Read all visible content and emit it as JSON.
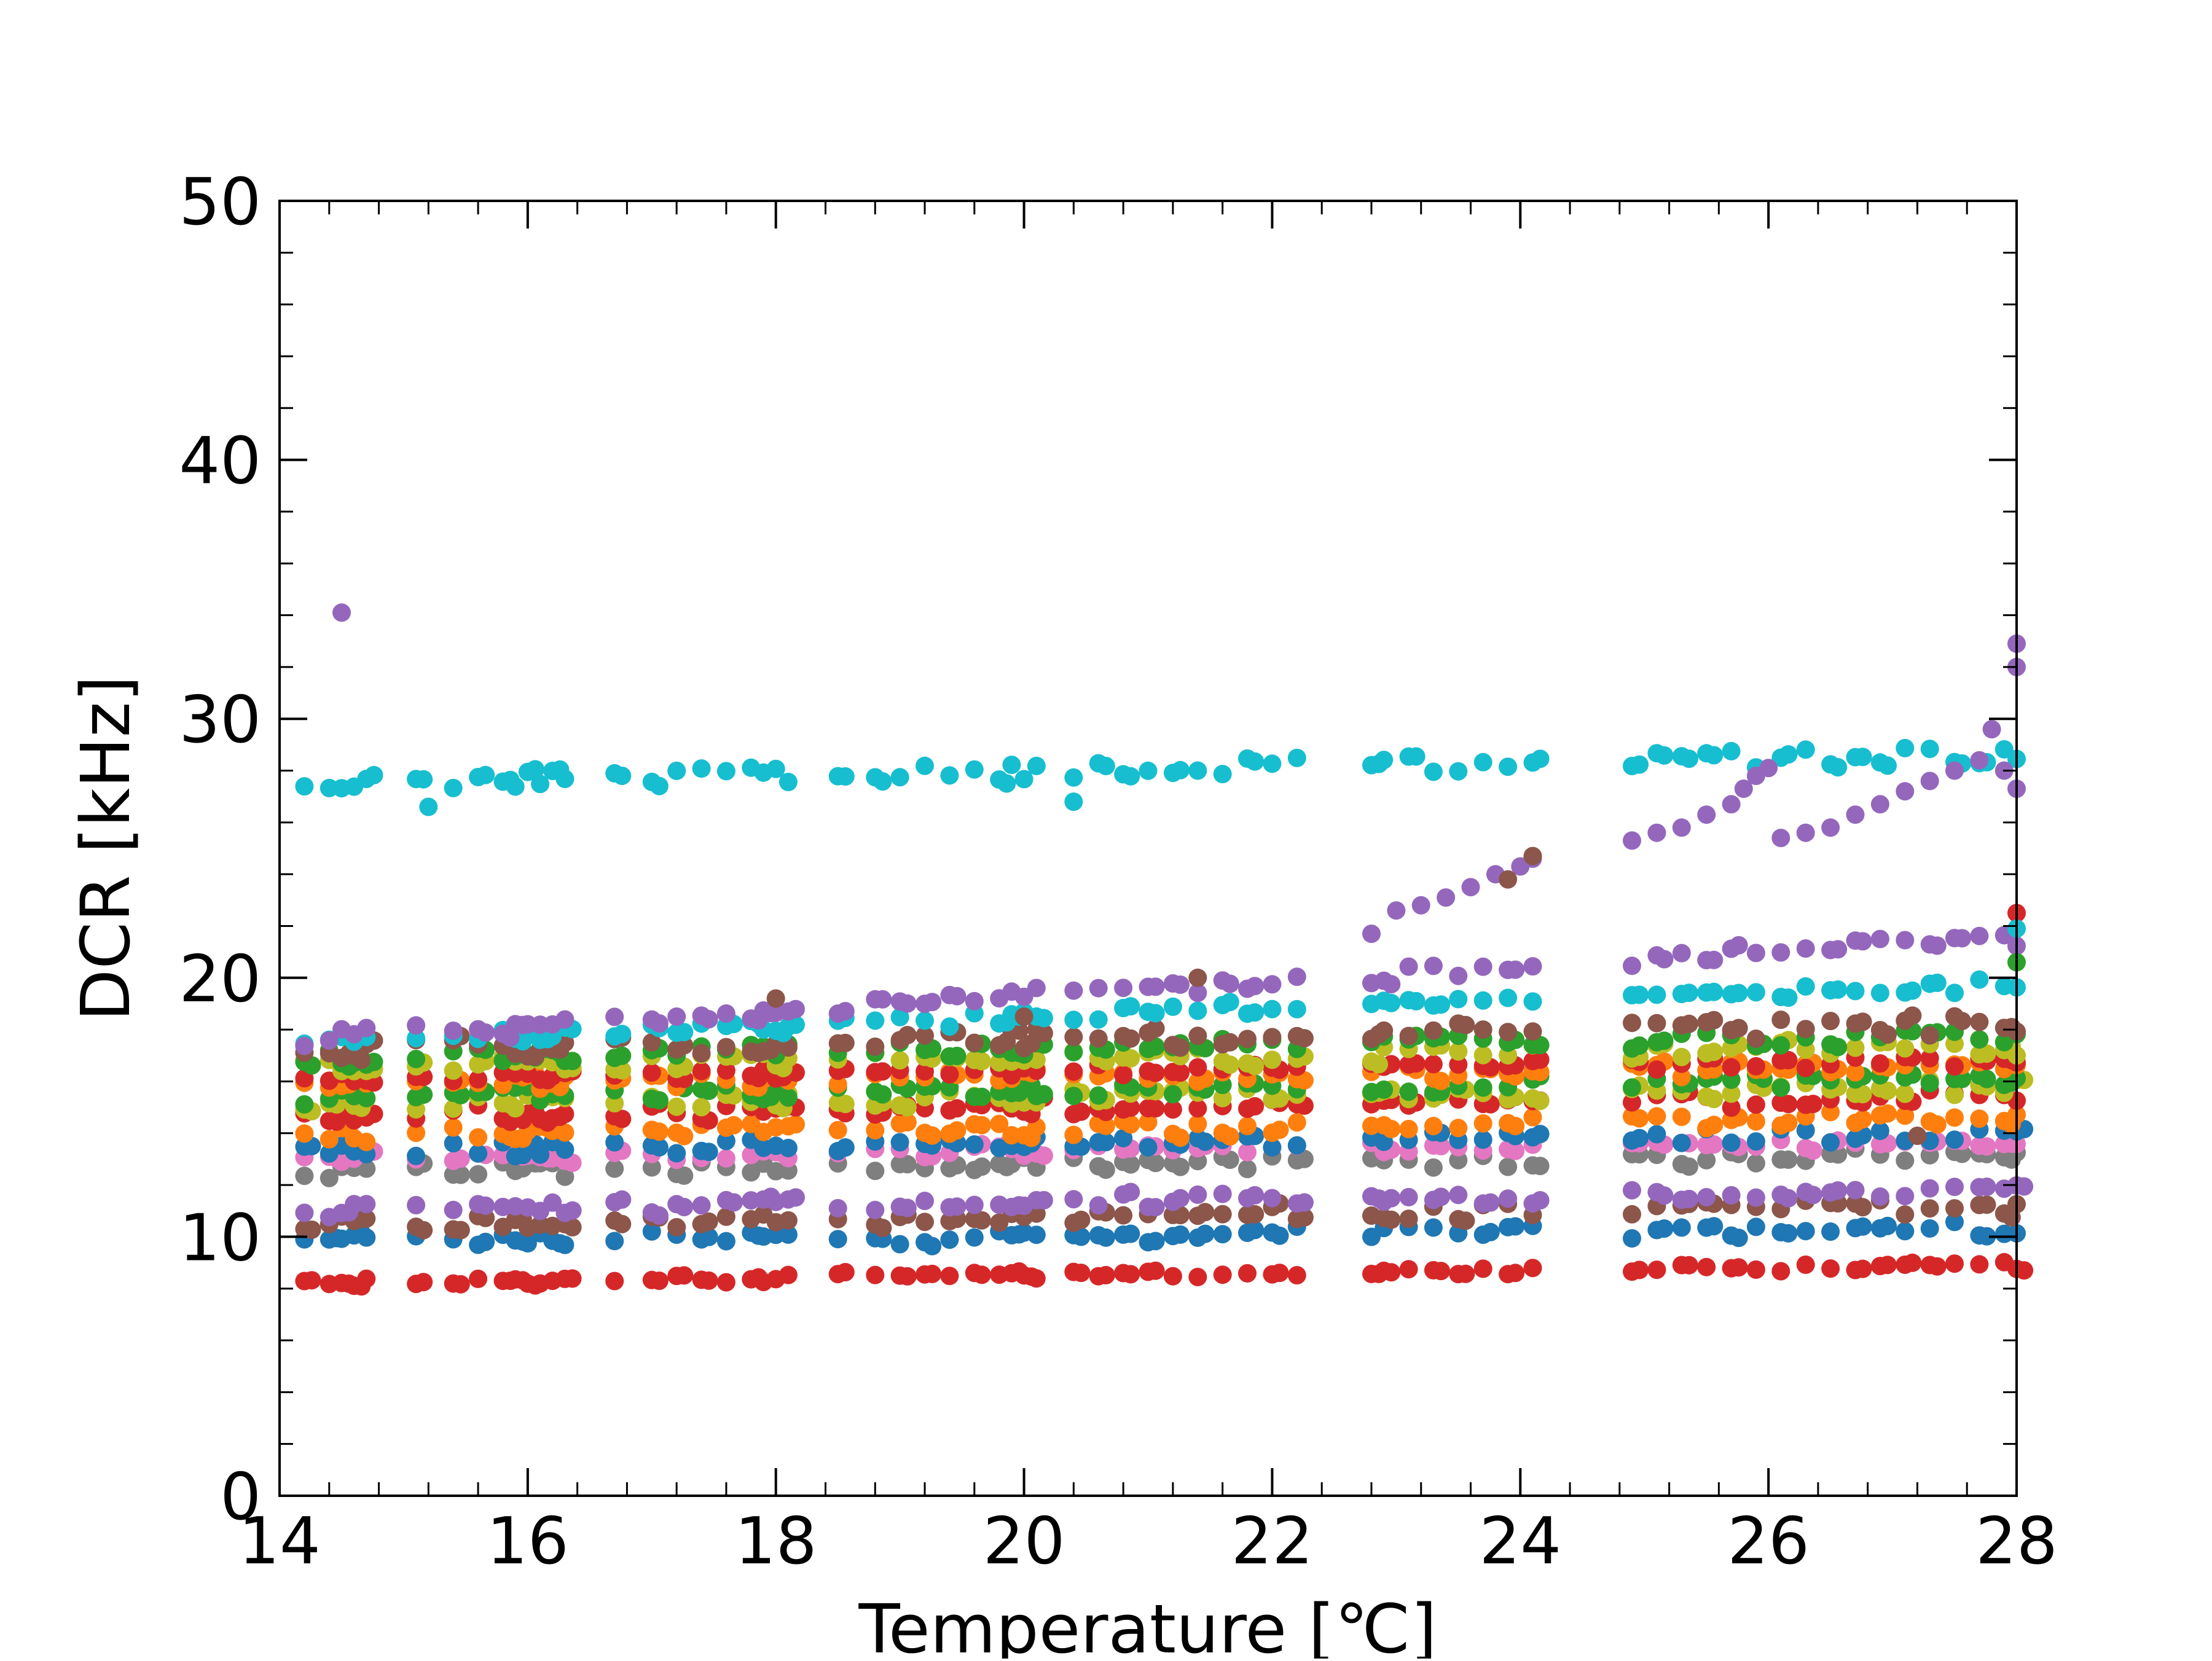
{
  "chart_data": {
    "type": "scatter",
    "title": "",
    "xlabel": "Temperature [℃]",
    "ylabel": "DCR [kHz]",
    "xlim": [
      14,
      28
    ],
    "ylim": [
      0,
      50
    ],
    "xticks": [
      14,
      16,
      18,
      20,
      22,
      24,
      26,
      28
    ],
    "yticks": [
      0,
      10,
      20,
      30,
      40,
      50
    ],
    "xtick_labels": [
      "14",
      "16",
      "18",
      "20",
      "22",
      "24",
      "26",
      "28"
    ],
    "ytick_labels": [
      "0",
      "10",
      "20",
      "30",
      "40",
      "50"
    ],
    "x_minor_step": 0.4,
    "y_minor_step": 2,
    "grid": false,
    "legend": "none",
    "colors": {
      "blue": "#1f77b4",
      "orange": "#ff7f0e",
      "green": "#2ca02c",
      "red": "#d62728",
      "purple": "#9467bd",
      "brown": "#8c564b",
      "pink": "#e377c2",
      "gray": "#7f7f7f",
      "olive": "#bcbd22",
      "cyan": "#17becf"
    },
    "x_temperatures": [
      14.2,
      14.4,
      14.5,
      14.6,
      14.7,
      15.1,
      15.4,
      15.6,
      15.8,
      15.9,
      16.0,
      16.1,
      16.2,
      16.3,
      16.7,
      17.0,
      17.2,
      17.4,
      17.6,
      17.8,
      17.9,
      18.0,
      18.1,
      18.5,
      18.8,
      19.0,
      19.2,
      19.4,
      19.6,
      19.8,
      19.9,
      20.0,
      20.1,
      20.4,
      20.6,
      20.8,
      21.0,
      21.2,
      21.4,
      21.6,
      21.8,
      22.0,
      22.2,
      22.8,
      22.9,
      23.1,
      23.3,
      23.5,
      23.7,
      23.9,
      24.1,
      24.9,
      25.1,
      25.3,
      25.5,
      25.7,
      25.9,
      26.1,
      26.3,
      26.5,
      26.7,
      26.9,
      27.1,
      27.3,
      27.5,
      27.7,
      27.9,
      28.0
    ],
    "series": [
      {
        "color": "blue",
        "level": 9.8,
        "slope": 0.04,
        "jitter": 0.3
      },
      {
        "color": "red",
        "level": 8.2,
        "slope": 0.05,
        "jitter": 0.15
      },
      {
        "color": "brown",
        "level": 10.5,
        "slope": 0.05,
        "jitter": 0.3
      },
      {
        "color": "purple",
        "level": 11.0,
        "slope": 0.05,
        "jitter": 0.3
      },
      {
        "color": "gray",
        "level": 12.5,
        "slope": 0.05,
        "jitter": 0.3
      },
      {
        "color": "pink",
        "level": 13.0,
        "slope": 0.05,
        "jitter": 0.2
      },
      {
        "color": "blue",
        "level": 13.3,
        "slope": 0.05,
        "jitter": 0.3
      },
      {
        "color": "orange",
        "level": 13.9,
        "slope": 0.05,
        "jitter": 0.3
      },
      {
        "color": "red",
        "level": 14.7,
        "slope": 0.05,
        "jitter": 0.3
      },
      {
        "color": "olive",
        "level": 15.1,
        "slope": 0.05,
        "jitter": 0.3
      },
      {
        "color": "green",
        "level": 15.4,
        "slope": 0.05,
        "jitter": 0.3
      },
      {
        "color": "orange",
        "level": 15.9,
        "slope": 0.05,
        "jitter": 0.3
      },
      {
        "color": "red",
        "level": 16.1,
        "slope": 0.05,
        "jitter": 0.2
      },
      {
        "color": "olive",
        "level": 16.6,
        "slope": 0.05,
        "jitter": 0.3
      },
      {
        "color": "green",
        "level": 16.9,
        "slope": 0.06,
        "jitter": 0.3
      },
      {
        "color": "brown",
        "level": 17.2,
        "slope": 0.07,
        "jitter": 0.4
      },
      {
        "color": "cyan",
        "level": 17.5,
        "slope": 0.16,
        "jitter": 0.25
      },
      {
        "color": "purple",
        "level": 17.6,
        "slope": 0.28,
        "jitter": 0.3
      },
      {
        "color": "cyan",
        "level": 27.5,
        "slope": 0.08,
        "jitter": 0.35
      }
    ],
    "purple_band": [
      {
        "x": 22.8,
        "y": 21.7
      },
      {
        "x": 23.0,
        "y": 22.6
      },
      {
        "x": 23.2,
        "y": 22.8
      },
      {
        "x": 23.4,
        "y": 23.1
      },
      {
        "x": 23.6,
        "y": 23.5
      },
      {
        "x": 23.8,
        "y": 24.0
      },
      {
        "x": 24.0,
        "y": 24.3
      },
      {
        "x": 24.1,
        "y": 24.6
      },
      {
        "x": 24.9,
        "y": 25.3
      },
      {
        "x": 25.1,
        "y": 25.6
      },
      {
        "x": 25.3,
        "y": 25.8
      },
      {
        "x": 25.5,
        "y": 26.3
      },
      {
        "x": 25.7,
        "y": 26.7
      },
      {
        "x": 25.8,
        "y": 27.3
      },
      {
        "x": 25.9,
        "y": 27.8
      },
      {
        "x": 26.0,
        "y": 28.1
      },
      {
        "x": 26.1,
        "y": 25.4
      },
      {
        "x": 26.3,
        "y": 25.6
      },
      {
        "x": 26.5,
        "y": 25.8
      },
      {
        "x": 26.7,
        "y": 26.3
      },
      {
        "x": 26.9,
        "y": 26.7
      },
      {
        "x": 27.1,
        "y": 27.2
      },
      {
        "x": 27.3,
        "y": 27.6
      },
      {
        "x": 27.5,
        "y": 28.0
      },
      {
        "x": 27.7,
        "y": 28.4
      },
      {
        "x": 27.9,
        "y": 28.0
      },
      {
        "x": 28.0,
        "y": 27.3
      },
      {
        "x": 28.0,
        "y": 32.0
      },
      {
        "x": 28.0,
        "y": 32.9
      },
      {
        "x": 27.8,
        "y": 29.6
      }
    ],
    "outliers": [
      {
        "x": 14.5,
        "y": 34.1,
        "color": "purple"
      },
      {
        "x": 21.4,
        "y": 20.0,
        "color": "brown"
      },
      {
        "x": 24.1,
        "y": 24.7,
        "color": "brown"
      },
      {
        "x": 23.9,
        "y": 23.8,
        "color": "brown"
      },
      {
        "x": 28.0,
        "y": 22.5,
        "color": "red"
      },
      {
        "x": 28.0,
        "y": 20.6,
        "color": "green"
      },
      {
        "x": 28.0,
        "y": 21.9,
        "color": "cyan"
      },
      {
        "x": 27.2,
        "y": 13.9,
        "color": "brown"
      },
      {
        "x": 18.0,
        "y": 19.2,
        "color": "brown"
      },
      {
        "x": 20.0,
        "y": 18.5,
        "color": "brown"
      },
      {
        "x": 15.2,
        "y": 26.6,
        "color": "cyan"
      },
      {
        "x": 20.4,
        "y": 26.8,
        "color": "cyan"
      }
    ]
  }
}
